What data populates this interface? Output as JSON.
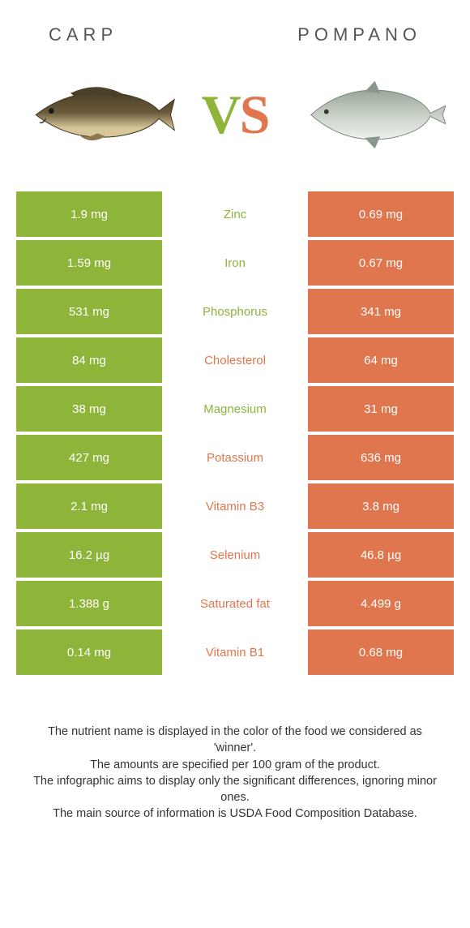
{
  "colors": {
    "green": "#8fb43a",
    "orange": "#e0764d",
    "carp_body": "#6b5a3a",
    "carp_belly": "#d8c79a",
    "pompano_body": "#b8c0b8",
    "pompano_belly": "#e8ece6"
  },
  "header": {
    "left": "Carp",
    "right": "Pompano"
  },
  "nutrients": [
    {
      "name": "Zinc",
      "left": "1.9 mg",
      "right": "0.69 mg",
      "winner": "left"
    },
    {
      "name": "Iron",
      "left": "1.59 mg",
      "right": "0.67 mg",
      "winner": "left"
    },
    {
      "name": "Phosphorus",
      "left": "531 mg",
      "right": "341 mg",
      "winner": "left"
    },
    {
      "name": "Cholesterol",
      "left": "84 mg",
      "right": "64 mg",
      "winner": "right"
    },
    {
      "name": "Magnesium",
      "left": "38 mg",
      "right": "31 mg",
      "winner": "left"
    },
    {
      "name": "Potassium",
      "left": "427 mg",
      "right": "636 mg",
      "winner": "right"
    },
    {
      "name": "Vitamin B3",
      "left": "2.1 mg",
      "right": "3.8 mg",
      "winner": "right"
    },
    {
      "name": "Selenium",
      "left": "16.2 µg",
      "right": "46.8 µg",
      "winner": "right"
    },
    {
      "name": "Saturated fat",
      "left": "1.388 g",
      "right": "4.499 g",
      "winner": "right"
    },
    {
      "name": "Vitamin B1",
      "left": "0.14 mg",
      "right": "0.68 mg",
      "winner": "right"
    }
  ],
  "footer": {
    "line1": "The nutrient name is displayed in the color of the food we considered as 'winner'.",
    "line2": "The amounts are specified per 100 gram of the product.",
    "line3": "The infographic aims to display only the significant differences, ignoring minor ones.",
    "line4": "The main source of information is USDA Food Composition Database."
  }
}
